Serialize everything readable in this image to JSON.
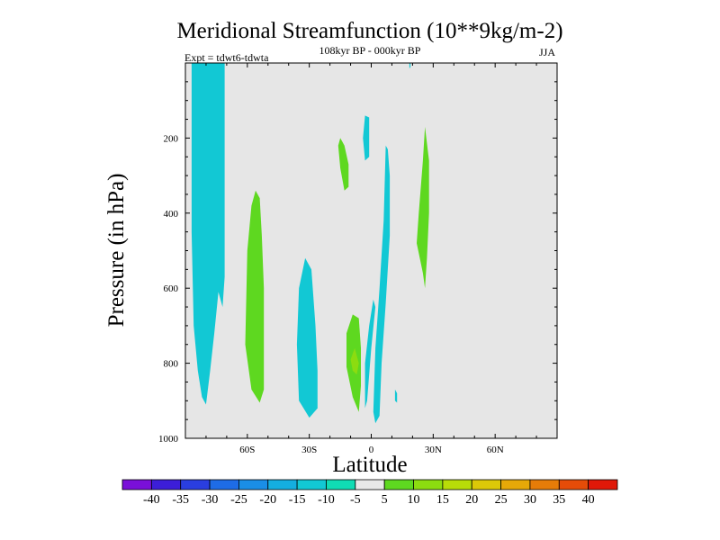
{
  "chart_data": {
    "type": "contour",
    "title": "Meridional Streamfunction (10**9kg/m-2)",
    "subtitle": "108kyr BP - 000kyr BP",
    "experiment": "Expt = tdwt6-tdwta",
    "season": "JJA",
    "xlabel": "Latitude",
    "ylabel": "Pressure (in hPa)",
    "xlim": [
      -90,
      90
    ],
    "ylim": [
      0,
      1000
    ],
    "y_inverted": true,
    "x_ticks": [
      {
        "value": -60,
        "label": "60S"
      },
      {
        "value": -30,
        "label": "30S"
      },
      {
        "value": 0,
        "label": "0"
      },
      {
        "value": 30,
        "label": "30N"
      },
      {
        "value": 60,
        "label": "60N"
      }
    ],
    "y_ticks": [
      {
        "value": 200,
        "label": "200"
      },
      {
        "value": 400,
        "label": "400"
      },
      {
        "value": 600,
        "label": "600"
      },
      {
        "value": 800,
        "label": "800"
      },
      {
        "value": 1000,
        "label": "1000"
      }
    ],
    "background_color": "#e6e6e6",
    "colorbar": {
      "levels": [
        -40,
        -35,
        -30,
        -25,
        -20,
        -15,
        -10,
        -5,
        5,
        10,
        15,
        20,
        25,
        30,
        35,
        40
      ],
      "labels": [
        "-40",
        "-35",
        "-30",
        "-25",
        "-20",
        "-15",
        "-10",
        "-5",
        "5",
        "10",
        "15",
        "20",
        "25",
        "30",
        "35",
        "40"
      ],
      "colors": [
        "#7a10d8",
        "#3c1ed8",
        "#2a3ee0",
        "#1e6ce6",
        "#1a8ee6",
        "#14aee0",
        "#12c8d4",
        "#10dcb4",
        "#e8e8e8",
        "#5ed820",
        "#8cdc10",
        "#b8dc08",
        "#dcc808",
        "#e6a808",
        "#e67c08",
        "#e64c08",
        "#e01808"
      ]
    },
    "regions": [
      {
        "name": "blue-core-sh-high-lat",
        "value": -15,
        "color": "#14aee0",
        "points": [
          [
            -86,
            0
          ],
          [
            -75,
            0
          ],
          [
            -75,
            300
          ],
          [
            -76,
            600
          ],
          [
            -78,
            700
          ],
          [
            -81,
            650
          ],
          [
            -84,
            450
          ],
          [
            -86,
            250
          ]
        ]
      },
      {
        "name": "cyan-sh-high-lat",
        "value": -10,
        "color": "#12c8d4",
        "points": [
          [
            -87,
            0
          ],
          [
            -71,
            0
          ],
          [
            -71,
            200
          ],
          [
            -71,
            570
          ],
          [
            -72,
            650
          ],
          [
            -74,
            610
          ],
          [
            -76,
            720
          ],
          [
            -78,
            820
          ],
          [
            -80,
            910
          ],
          [
            -82,
            890
          ],
          [
            -84,
            820
          ],
          [
            -86,
            700
          ],
          [
            -87,
            450
          ]
        ]
      },
      {
        "name": "green-sh-midlat",
        "value": 10,
        "color": "#5ed820",
        "points": [
          [
            -56,
            340
          ],
          [
            -54,
            360
          ],
          [
            -53,
            460
          ],
          [
            -52,
            600
          ],
          [
            -52,
            750
          ],
          [
            -52,
            870
          ],
          [
            -54,
            905
          ],
          [
            -58,
            870
          ],
          [
            -61,
            750
          ],
          [
            -60,
            500
          ],
          [
            -58,
            380
          ]
        ]
      },
      {
        "name": "cyan-sh-subtropics",
        "value": -10,
        "color": "#12c8d4",
        "points": [
          [
            -32,
            520
          ],
          [
            -29,
            550
          ],
          [
            -27,
            700
          ],
          [
            -26,
            820
          ],
          [
            -26,
            920
          ],
          [
            -30,
            945
          ],
          [
            -35,
            900
          ],
          [
            -36,
            750
          ],
          [
            -35,
            600
          ]
        ]
      },
      {
        "name": "green-upper-tropics",
        "value": 10,
        "color": "#5ed820",
        "points": [
          [
            -15,
            200
          ],
          [
            -13,
            220
          ],
          [
            -11,
            270
          ],
          [
            -11,
            330
          ],
          [
            -13,
            340
          ],
          [
            -15,
            280
          ],
          [
            -16,
            220
          ]
        ]
      },
      {
        "name": "cyan-upper-equator",
        "value": -10,
        "color": "#12c8d4",
        "points": [
          [
            -3,
            140
          ],
          [
            -1,
            145
          ],
          [
            -1,
            250
          ],
          [
            -3,
            260
          ],
          [
            -4,
            200
          ]
        ]
      },
      {
        "name": "green-lower-tropics",
        "value": 10,
        "color": "#5ed820",
        "points": [
          [
            -9,
            670
          ],
          [
            -6,
            680
          ],
          [
            -5,
            760
          ],
          [
            -5,
            860
          ],
          [
            -6,
            930
          ],
          [
            -9,
            890
          ],
          [
            -12,
            810
          ],
          [
            -12,
            720
          ]
        ]
      },
      {
        "name": "lime-core-lower-tropics",
        "value": 15,
        "color": "#8cdc10",
        "points": [
          [
            -8,
            760
          ],
          [
            -6,
            800
          ],
          [
            -7,
            830
          ],
          [
            -9,
            820
          ],
          [
            -10,
            790
          ]
        ]
      },
      {
        "name": "cyan-equatorial-column",
        "value": -10,
        "color": "#12c8d4",
        "points": [
          [
            8,
            230
          ],
          [
            9,
            300
          ],
          [
            9,
            460
          ],
          [
            7,
            640
          ],
          [
            5,
            800
          ],
          [
            4,
            940
          ],
          [
            2,
            960
          ],
          [
            1,
            930
          ],
          [
            2,
            760
          ],
          [
            4,
            600
          ],
          [
            6,
            420
          ],
          [
            7,
            220
          ]
        ]
      },
      {
        "name": "cyan-lower-equator-sliver",
        "value": -10,
        "color": "#12c8d4",
        "points": [
          [
            1,
            630
          ],
          [
            2,
            650
          ],
          [
            0,
            760
          ],
          [
            -2,
            900
          ],
          [
            -3,
            920
          ],
          [
            -3,
            800
          ],
          [
            -1,
            700
          ]
        ]
      },
      {
        "name": "cyan-top-nh",
        "value": -10,
        "color": "#12c8d4",
        "points": [
          [
            18.5,
            0
          ],
          [
            19,
            0
          ],
          [
            19,
            10
          ],
          [
            18.5,
            15
          ]
        ]
      },
      {
        "name": "cyan-small-blob",
        "value": -10,
        "color": "#12c8d4",
        "points": [
          [
            11.5,
            870
          ],
          [
            12.5,
            880
          ],
          [
            12.5,
            905
          ],
          [
            11.5,
            900
          ]
        ]
      },
      {
        "name": "green-nh-subtropics",
        "value": 10,
        "color": "#5ed820",
        "points": [
          [
            26,
            170
          ],
          [
            28,
            260
          ],
          [
            28,
            400
          ],
          [
            27,
            520
          ],
          [
            26,
            600
          ],
          [
            25,
            560
          ],
          [
            22,
            480
          ],
          [
            23,
            400
          ],
          [
            25,
            260
          ]
        ]
      }
    ]
  }
}
